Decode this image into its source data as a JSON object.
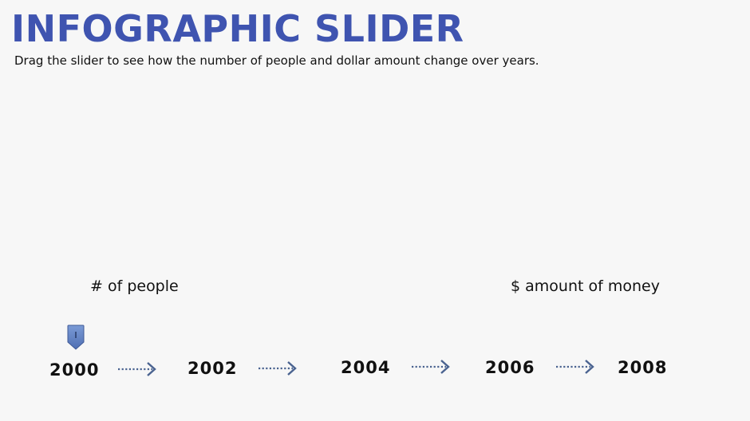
{
  "header": {
    "title": "INFOGRAPHIC SLIDER",
    "subtitle": "Drag the slider to see how the number of people and dollar amount change over years."
  },
  "labels": {
    "people": "# of people",
    "money": "$ amount of money"
  },
  "slider": {
    "handle_icon": "slider-handle-icon",
    "selected_year": "2000",
    "years": [
      "2000",
      "2002",
      "2004",
      "2006",
      "2008"
    ],
    "arrow_icon": "dotted-arrow-right-icon"
  },
  "colors": {
    "title": "#3f54b0",
    "handle": "#5b7fc2",
    "arrow": "#4a6390"
  }
}
